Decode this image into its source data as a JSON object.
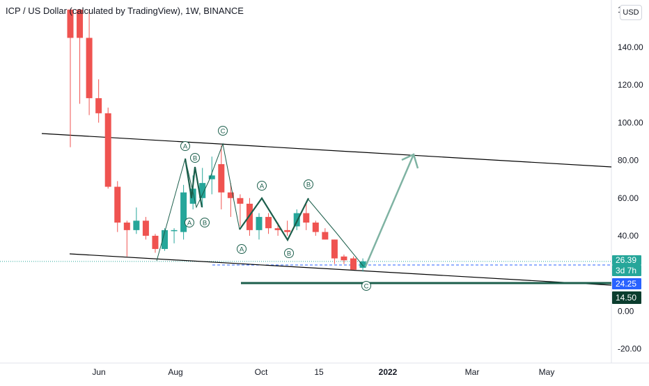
{
  "header": {
    "title": "ICP / US Dollar (calculated by TradingView), 1W, BINANCE",
    "currency": "USD",
    "y_top_label_partial": "1"
  },
  "colors": {
    "up": "#26a69a",
    "down": "#ef5350",
    "channel_line": "#000000",
    "wave_line": "#1b5e4b",
    "projection_arrow": "#7fb3a3",
    "support_line": "#1b5e4b",
    "price_label_bg": "#26a69a",
    "blue_label_bg": "#2962ff",
    "dark_label_bg": "#0b3d2e"
  },
  "chart_data": {
    "type": "candlestick",
    "title": "ICP / US Dollar (calculated by TradingView), 1W, BINANCE",
    "timeframe": "1W",
    "exchange": "BINANCE",
    "y_axis": {
      "ticks": [
        140,
        120,
        100,
        80,
        60,
        40,
        0,
        -20
      ],
      "tick_labels": [
        "140.00",
        "120.00",
        "100.00",
        "80.00",
        "60.00",
        "40.00",
        "0.00",
        "-20.00"
      ]
    },
    "x_axis": {
      "tick_labels": [
        "Jun",
        "Aug",
        "Oct",
        "15",
        "2022",
        "Mar",
        "May"
      ]
    },
    "ylim": [
      -25,
      160
    ],
    "candles": [
      {
        "week": "2021-05-17",
        "open": 160,
        "high": 160,
        "low": 87,
        "close": 145
      },
      {
        "week": "2021-05-24",
        "open": 160,
        "high": 160,
        "low": 110,
        "close": 145
      },
      {
        "week": "2021-05-31",
        "open": 145,
        "high": 160,
        "low": 104,
        "close": 113
      },
      {
        "week": "2021-06-07",
        "open": 113,
        "high": 123,
        "low": 100,
        "close": 105
      },
      {
        "week": "2021-06-14",
        "open": 105,
        "high": 108,
        "low": 65,
        "close": 66
      },
      {
        "week": "2021-06-21",
        "open": 66,
        "high": 69,
        "low": 42,
        "close": 47
      },
      {
        "week": "2021-06-28",
        "open": 47,
        "high": 48,
        "low": 29,
        "close": 43
      },
      {
        "week": "2021-07-05",
        "open": 43,
        "high": 55,
        "low": 41,
        "close": 48
      },
      {
        "week": "2021-07-12",
        "open": 48,
        "high": 50,
        "low": 38,
        "close": 40
      },
      {
        "week": "2021-07-19",
        "open": 40,
        "high": 41,
        "low": 31,
        "close": 33
      },
      {
        "week": "2021-07-26",
        "open": 33,
        "high": 44,
        "low": 32,
        "close": 43
      },
      {
        "week": "2021-08-02",
        "open": 43,
        "high": 44,
        "low": 36,
        "close": 43
      },
      {
        "week": "2021-08-09",
        "open": 42,
        "high": 67,
        "low": 38,
        "close": 63
      },
      {
        "week": "2021-08-16",
        "open": 57,
        "high": 72,
        "low": 54,
        "close": 65
      },
      {
        "week": "2021-08-23",
        "open": 60,
        "high": 76,
        "low": 55,
        "close": 68
      },
      {
        "week": "2021-08-30",
        "open": 70,
        "high": 82,
        "low": 62,
        "close": 72
      },
      {
        "week": "2021-09-06",
        "open": 78,
        "high": 88,
        "low": 54,
        "close": 63
      },
      {
        "week": "2021-09-13",
        "open": 63,
        "high": 68,
        "low": 50,
        "close": 60
      },
      {
        "week": "2021-09-20",
        "open": 60,
        "high": 62,
        "low": 45,
        "close": 57
      },
      {
        "week": "2021-09-27",
        "open": 57,
        "high": 60,
        "low": 40,
        "close": 43
      },
      {
        "week": "2021-10-04",
        "open": 43,
        "high": 52,
        "low": 38,
        "close": 50
      },
      {
        "week": "2021-10-11",
        "open": 50,
        "high": 52,
        "low": 41,
        "close": 44
      },
      {
        "week": "2021-10-18",
        "open": 44,
        "high": 47,
        "low": 40,
        "close": 43
      },
      {
        "week": "2021-10-25",
        "open": 43,
        "high": 48,
        "low": 40,
        "close": 42
      },
      {
        "week": "2021-11-01",
        "open": 45,
        "high": 54,
        "low": 43,
        "close": 52
      },
      {
        "week": "2021-11-08",
        "open": 52,
        "high": 58,
        "low": 43,
        "close": 47
      },
      {
        "week": "2021-11-15",
        "open": 47,
        "high": 48,
        "low": 40,
        "close": 42
      },
      {
        "week": "2021-11-22",
        "open": 42,
        "high": 44,
        "low": 38,
        "close": 38
      },
      {
        "week": "2021-11-29",
        "open": 38,
        "high": 38,
        "low": 25,
        "close": 28
      },
      {
        "week": "2021-12-06",
        "open": 29,
        "high": 30,
        "low": 25,
        "close": 27
      },
      {
        "week": "2021-12-13",
        "open": 28,
        "high": 29,
        "low": 22,
        "close": 22
      },
      {
        "week": "2021-12-20",
        "open": 23,
        "high": 28,
        "low": 21,
        "close": 26.39
      }
    ],
    "wave_labels": [
      "A",
      "B",
      "C",
      "A",
      "B",
      "A",
      "B",
      "A",
      "B",
      "C"
    ],
    "price_labels": [
      {
        "text": "26.39",
        "role": "last-price"
      },
      {
        "text": "3d 7h",
        "role": "time-to-close"
      },
      {
        "text": "24.25",
        "role": "blue-marker"
      },
      {
        "text": "14.50",
        "role": "support-level"
      }
    ],
    "levels": {
      "last_price": 26.39,
      "blue_dashed": 24.25,
      "support": 14.5
    }
  }
}
